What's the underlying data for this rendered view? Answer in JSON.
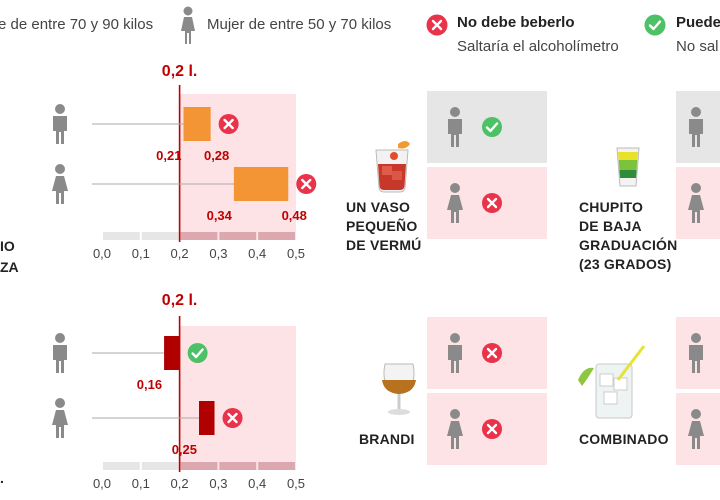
{
  "legend": {
    "man_label": "e de entre 70 y 90 kilos",
    "woman_label": "Mujer de entre 50 y 70 kilos",
    "no_title": "No debe beberlo",
    "no_subtitle": "Saltaría el alcoholímetro",
    "yes_title": "Puede",
    "yes_subtitle": "No sal"
  },
  "left_cut_labels": {
    "top_line1": "IO",
    "top_line2": "ZA",
    "bottom_line2": "."
  },
  "colors": {
    "limit_red": "#c00000",
    "orange": "#f39435",
    "dark_red": "#b00000",
    "pink_zone": "#fde3e5",
    "grey_panel": "#e6e6e6",
    "cross_red": "#e8334a",
    "check_green": "#4cc165",
    "person": "#8a8a8a"
  },
  "chart_data": [
    {
      "type": "range-bar",
      "limit_label": "0,2 l.",
      "limit": 0.2,
      "xlim": [
        0,
        0.5
      ],
      "ticks": [
        "0,0",
        "0,1",
        "0,2",
        "0,3",
        "0,4",
        "0,5"
      ],
      "rows": [
        {
          "person": "man",
          "low": 0.21,
          "high": 0.28,
          "low_label": "0,21",
          "high_label": "0,28",
          "verdict": "no"
        },
        {
          "person": "woman",
          "low": 0.34,
          "high": 0.48,
          "low_label": "0,34",
          "high_label": "0,48",
          "verdict": "no"
        }
      ],
      "bar_color": "#f39435"
    },
    {
      "type": "range-bar",
      "limit_label": "0,2 l.",
      "limit": 0.2,
      "xlim": [
        0,
        0.5
      ],
      "ticks": [
        "0,0",
        "0,1",
        "0,2",
        "0,3",
        "0,4",
        "0,5"
      ],
      "rows": [
        {
          "person": "man",
          "low": 0.16,
          "high": 0.2,
          "low_label": "0,16",
          "high_label": "",
          "verdict": "yes"
        },
        {
          "person": "woman",
          "low": 0.25,
          "high": 0.29,
          "low_label": "0,25",
          "high_label": "",
          "verdict": "no"
        }
      ],
      "bar_color": "#b00000"
    }
  ],
  "drinks": [
    {
      "label": "UN VASO PEQUEÑO DE VERMÚ",
      "lines": [
        "UN VASO",
        "PEQUEÑO",
        "DE VERMÚ"
      ],
      "icon": "vermouth-glass-icon",
      "man": "yes",
      "woman": "no"
    },
    {
      "label": "CHUPITO DE BAJA GRADUACIÓN (23 GRADOS)",
      "lines": [
        "CHUPITO",
        "DE BAJA",
        "GRADUACIÓN",
        "(23 GRADOS)"
      ],
      "icon": "shot-glass-icon",
      "man": "",
      "woman": ""
    },
    {
      "label": "BRANDI",
      "lines": [
        "BRANDI"
      ],
      "icon": "brandy-glass-icon",
      "man": "no",
      "woman": "no"
    },
    {
      "label": "COMBINADO",
      "lines": [
        "COMBINADO"
      ],
      "icon": "cocktail-glass-icon",
      "man": "",
      "woman": ""
    }
  ]
}
